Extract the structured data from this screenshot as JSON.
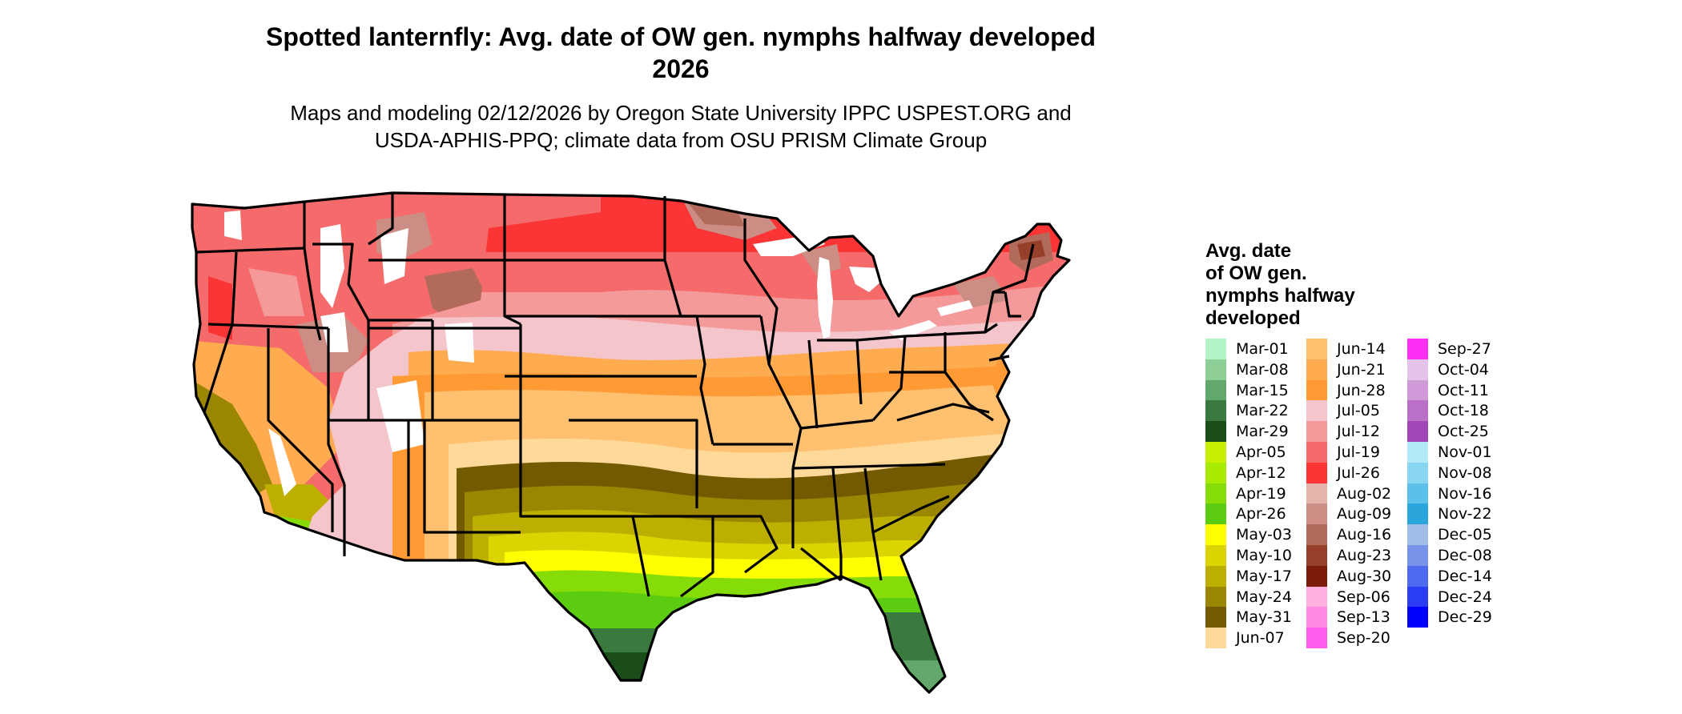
{
  "title": {
    "line1": "Spotted lanternfly: Avg. date of OW gen. nymphs halfway developed",
    "line2": "2026"
  },
  "subtitle": {
    "line1": "Maps and modeling 02/12/2026 by Oregon State University IPPC USPEST.ORG and",
    "line2": "USDA-APHIS-PPQ; climate data from OSU PRISM Climate Group"
  },
  "legend": {
    "title_lines": [
      "Avg. date",
      "of OW gen.",
      "nymphs halfway",
      "developed"
    ],
    "items": [
      {
        "label": "Mar-01",
        "color": "#b3f5c8"
      },
      {
        "label": "Mar-08",
        "color": "#8ecf97"
      },
      {
        "label": "Mar-15",
        "color": "#62a86c"
      },
      {
        "label": "Mar-22",
        "color": "#3b7a3e"
      },
      {
        "label": "Mar-29",
        "color": "#1a4d1a"
      },
      {
        "label": "Apr-05",
        "color": "#c6f000"
      },
      {
        "label": "Apr-12",
        "color": "#a8ea00"
      },
      {
        "label": "Apr-19",
        "color": "#86dc06"
      },
      {
        "label": "Apr-26",
        "color": "#5ccc10"
      },
      {
        "label": "May-03",
        "color": "#ffff00"
      },
      {
        "label": "May-10",
        "color": "#dcd400"
      },
      {
        "label": "May-17",
        "color": "#bcaf00"
      },
      {
        "label": "May-24",
        "color": "#9a8600"
      },
      {
        "label": "May-31",
        "color": "#735a00"
      },
      {
        "label": "Jun-07",
        "color": "#ffd999"
      },
      {
        "label": "Jun-14",
        "color": "#ffc070"
      },
      {
        "label": "Jun-21",
        "color": "#ffab50"
      },
      {
        "label": "Jun-28",
        "color": "#ff9a35"
      },
      {
        "label": "Jul-05",
        "color": "#f4c6cc"
      },
      {
        "label": "Jul-12",
        "color": "#f59a9a"
      },
      {
        "label": "Jul-19",
        "color": "#f56a6a"
      },
      {
        "label": "Jul-26",
        "color": "#fb3535"
      },
      {
        "label": "Aug-02",
        "color": "#e5b4a9"
      },
      {
        "label": "Aug-09",
        "color": "#cc8e84"
      },
      {
        "label": "Aug-16",
        "color": "#b26a5a"
      },
      {
        "label": "Aug-23",
        "color": "#983f2c"
      },
      {
        "label": "Aug-30",
        "color": "#7a1a0a"
      },
      {
        "label": "Sep-06",
        "color": "#ffb0e0"
      },
      {
        "label": "Sep-13",
        "color": "#ff8ae4"
      },
      {
        "label": "Sep-20",
        "color": "#ff5cec"
      },
      {
        "label": "Sep-27",
        "color": "#ff2ef5"
      },
      {
        "label": "Oct-04",
        "color": "#e5c2ea"
      },
      {
        "label": "Oct-11",
        "color": "#d09ad8"
      },
      {
        "label": "Oct-18",
        "color": "#ba70c6"
      },
      {
        "label": "Oct-25",
        "color": "#a246b6"
      },
      {
        "label": "Nov-01",
        "color": "#b2eaf8"
      },
      {
        "label": "Nov-08",
        "color": "#88d6f2"
      },
      {
        "label": "Nov-16",
        "color": "#5cc0ea"
      },
      {
        "label": "Nov-22",
        "color": "#2aa6dc"
      },
      {
        "label": "Dec-05",
        "color": "#a2bee8"
      },
      {
        "label": "Dec-08",
        "color": "#7894ea"
      },
      {
        "label": "Dec-14",
        "color": "#4e6aee"
      },
      {
        "label": "Dec-24",
        "color": "#2a3cf4"
      },
      {
        "label": "Dec-29",
        "color": "#0000ff"
      }
    ]
  },
  "map": {
    "region": "contiguous-united-states",
    "border_color": "#000000",
    "snow_color": "#ffffff"
  }
}
